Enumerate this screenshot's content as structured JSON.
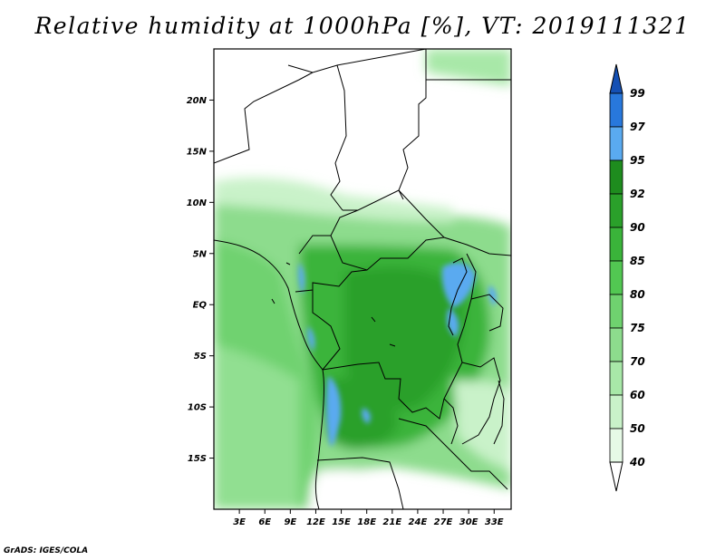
{
  "title": "Relative humidity at 1000hPa [%], VT: 2019111321",
  "credit": "GrADS: IGES/COLA",
  "map": {
    "lat_ticks": [
      "20N",
      "15N",
      "10N",
      "5N",
      "EQ",
      "5S",
      "10S",
      "15S"
    ],
    "lon_ticks": [
      "3E",
      "6E",
      "9E",
      "12E",
      "15E",
      "18E",
      "21E",
      "24E",
      "27E",
      "30E",
      "33E"
    ],
    "lon_range": [
      0,
      35
    ],
    "lat_range": [
      -20,
      25
    ]
  },
  "colorbar": {
    "levels": [
      "40",
      "50",
      "60",
      "70",
      "75",
      "80",
      "85",
      "90",
      "92",
      "95",
      "97",
      "99"
    ],
    "colors": [
      "#ffffff",
      "#e6fae6",
      "#c9f2c9",
      "#a8e8a8",
      "#8ddc8d",
      "#6fd26f",
      "#52c752",
      "#3ab43a",
      "#2aa02a",
      "#1e8c1e",
      "#5aaaf0",
      "#2878dc",
      "#1450b4"
    ]
  }
}
